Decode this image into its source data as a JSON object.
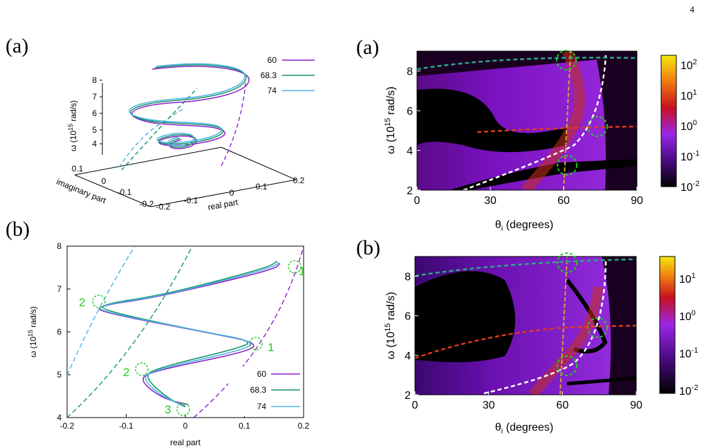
{
  "page_number": "4",
  "colors": {
    "purple": "#8b1fc6",
    "green": "#119466",
    "cyan": "#4ab2e3",
    "green_ann": "#22cc22",
    "white_dash": "#ffffff",
    "red_dash": "#e03a1a",
    "teal_dash": "#2aa88a",
    "orange_dash": "#d8a030"
  },
  "legend": {
    "entries": [
      "60",
      "68.3",
      "74"
    ]
  },
  "panel_3d": {
    "letter": "(a)",
    "z_label": "ω (10",
    "z_label_sup": "15",
    "z_label_tail": " rad/s)",
    "z_ticks": [
      "8",
      "7",
      "6",
      "5",
      "4"
    ],
    "imag_label": "imaginary part",
    "imag_ticks": [
      "0.1",
      "0",
      "-0.1",
      "-0.2"
    ],
    "real_label": "real part",
    "real_ticks": [
      "-0.2",
      "-0.1",
      "0",
      "0.1",
      "0.2"
    ]
  },
  "panel_2d": {
    "letter": "(b)",
    "y_label": "ω (10",
    "y_label_sup": "15",
    "y_label_tail": " rad/s)",
    "y_ticks": [
      "8",
      "7",
      "6",
      "5",
      "4"
    ],
    "x_label": "real part",
    "x_ticks": [
      "-0.2",
      "-0.1",
      "0",
      "0.1",
      "0.2"
    ],
    "annotations": [
      "1",
      "2",
      "1",
      "2",
      "3"
    ]
  },
  "heatmap_a": {
    "letter": "(a)",
    "y_label": "ω (10",
    "y_label_sup": "15",
    "y_label_tail": " rad/s)",
    "y_ticks": [
      "8",
      "6",
      "4",
      "2"
    ],
    "x_label": "θ",
    "x_label_sub": "i",
    "x_label_tail": " (degrees)",
    "x_ticks": [
      "0",
      "30",
      "60",
      "90"
    ],
    "cbar_ticks": [
      {
        "base": "10",
        "exp": "2"
      },
      {
        "base": "10",
        "exp": "1"
      },
      {
        "base": "10",
        "exp": "0"
      },
      {
        "base": "10",
        "exp": "-1"
      },
      {
        "base": "10",
        "exp": "-2"
      }
    ]
  },
  "heatmap_b": {
    "letter": "(b)",
    "y_label": "ω (10",
    "y_label_sup": "15",
    "y_label_tail": " rad/s)",
    "y_ticks": [
      "8",
      "6",
      "4",
      "2"
    ],
    "x_label": "θ",
    "x_label_sub": "i",
    "x_label_tail": " (degrees)",
    "x_ticks": [
      "0",
      "30",
      "60",
      "90"
    ],
    "cbar_ticks": [
      {
        "base": "10",
        "exp": "1"
      },
      {
        "base": "10",
        "exp": "0"
      },
      {
        "base": "10",
        "exp": "-1"
      },
      {
        "base": "10",
        "exp": "-2"
      }
    ]
  },
  "chart_data": [
    {
      "type": "line",
      "panel": "(a) 3D trajectory",
      "xlabel": "real part",
      "ylabel": "imaginary part",
      "zlabel": "ω (10^15 rad/s)",
      "xlim": [
        -0.2,
        0.2
      ],
      "ylim": [
        -0.2,
        0.1
      ],
      "zlim": [
        4,
        8
      ],
      "series": [
        {
          "name": "60"
        },
        {
          "name": "68.3"
        },
        {
          "name": "74"
        }
      ]
    },
    {
      "type": "line",
      "panel": "(b) real part vs omega",
      "xlabel": "real part",
      "ylabel": "ω (10^15 rad/s)",
      "xlim": [
        -0.2,
        0.2
      ],
      "ylim": [
        4,
        8
      ],
      "series": [
        {
          "name": "60",
          "x": [
            0.005,
            -0.04,
            -0.08,
            -0.05,
            0.11,
            0.12,
            0.05,
            -0.14,
            -0.15,
            -0.05,
            0.15,
            0.16
          ],
          "y": [
            4.3,
            4.45,
            4.9,
            5.1,
            5.55,
            5.75,
            5.95,
            6.45,
            6.6,
            6.8,
            7.45,
            7.6
          ]
        },
        {
          "name": "68.3",
          "x": [
            0.0,
            -0.03,
            -0.07,
            -0.05,
            0.1,
            0.11,
            0.03,
            -0.14,
            -0.14,
            -0.04,
            0.14,
            0.155
          ],
          "y": [
            4.25,
            4.45,
            4.95,
            5.15,
            5.65,
            5.8,
            6.0,
            6.5,
            6.65,
            6.85,
            7.5,
            7.65
          ]
        },
        {
          "name": "74",
          "x": [
            0.0,
            -0.035,
            -0.075,
            -0.05,
            0.105,
            0.115,
            0.04,
            -0.145,
            -0.145,
            -0.045,
            0.145,
            0.158
          ],
          "y": [
            4.28,
            4.45,
            4.92,
            5.12,
            5.6,
            5.78,
            5.98,
            6.48,
            6.62,
            6.82,
            7.48,
            7.62
          ]
        }
      ]
    },
    {
      "type": "heatmap",
      "panel": "(a) heatmap",
      "xlabel": "θi (degrees)",
      "ylabel": "ω (10^15 rad/s)",
      "xlim": [
        0,
        90
      ],
      "ylim": [
        2,
        9
      ],
      "colorbar": "log scale 10^-2 to 10^2"
    },
    {
      "type": "heatmap",
      "panel": "(b) heatmap",
      "xlabel": "θi (degrees)",
      "ylabel": "ω (10^15 rad/s)",
      "xlim": [
        0,
        90
      ],
      "ylim": [
        2,
        9
      ],
      "colorbar": "log scale 10^-2 to 10^1"
    }
  ]
}
